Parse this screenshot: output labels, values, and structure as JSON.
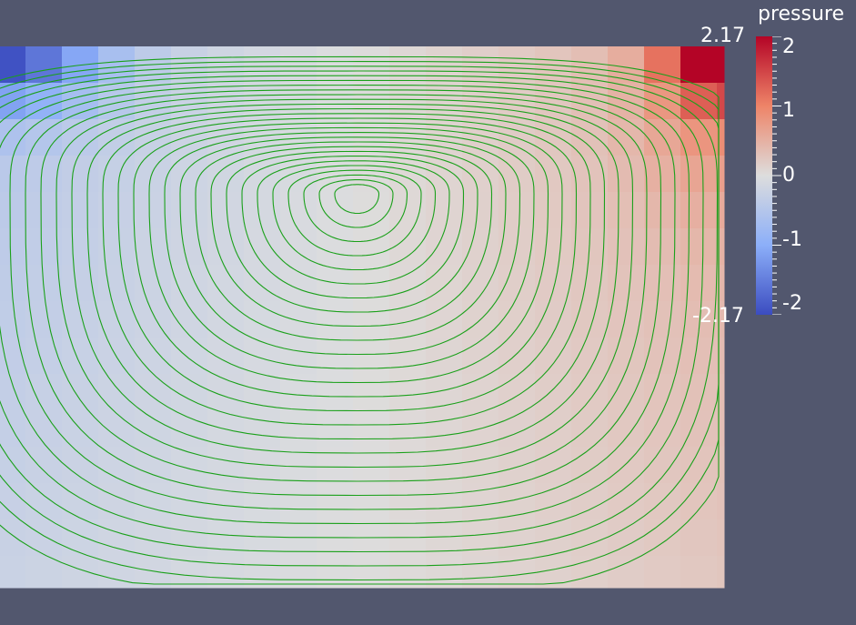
{
  "scalar_bar": {
    "title": "pressure",
    "range_max_label": "2.17",
    "range_min_label": "-2.17",
    "range": [
      -2.17,
      2.17
    ],
    "ticks": [
      {
        "value": 2,
        "label": "2"
      },
      {
        "value": 1,
        "label": "1"
      },
      {
        "value": 0,
        "label": "0"
      },
      {
        "value": -1,
        "label": "-1"
      },
      {
        "value": -2,
        "label": "-2"
      }
    ],
    "colormap": "cool to warm",
    "colors": {
      "low": "#3b4cc0",
      "mid": "#dddddd",
      "high": "#b40426",
      "max_cell": "#b40426"
    }
  },
  "view": {
    "background": "#52576e",
    "streamline_color": "#1aa01a",
    "content": "lid-driven cavity pressure field with streamlines"
  }
}
